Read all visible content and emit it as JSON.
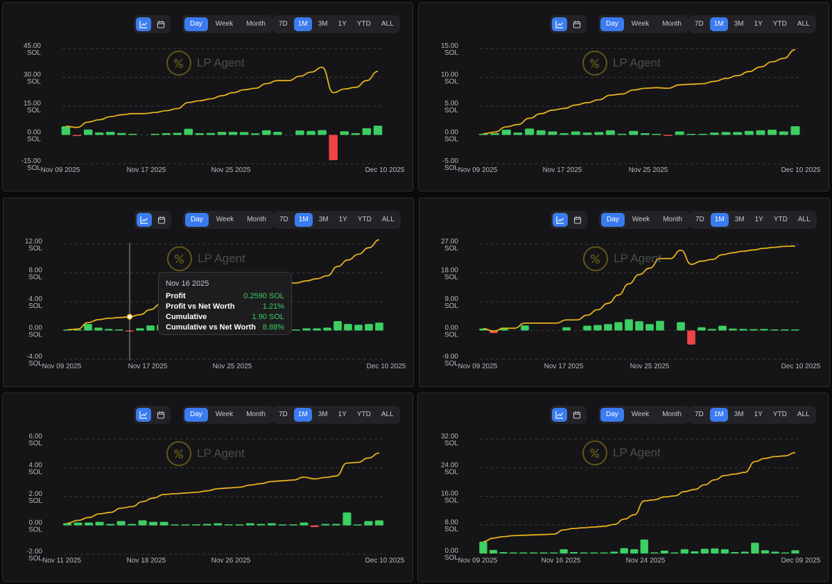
{
  "toolbar": {
    "view_icons": [
      "line-chart-icon",
      "calendar-icon"
    ],
    "group": [
      "Day",
      "Week",
      "Month"
    ],
    "group_active": "Day",
    "ranges": [
      "7D",
      "1M",
      "3M",
      "1Y",
      "YTD",
      "ALL"
    ],
    "range_active": "1M"
  },
  "watermark": "LP Agent",
  "colors": {
    "up": "#3ccf63",
    "down": "#ef4444",
    "line": "#e8b21c",
    "accent": "#3b7bf0"
  },
  "tooltip": {
    "date": "Nov 16 2025",
    "rows": [
      {
        "label": "Profit",
        "value": "0.2590 SOL"
      },
      {
        "label": "Profit vs Net Worth",
        "value": "1.21%"
      },
      {
        "label": "Cumulative",
        "value": "1.90 SOL"
      },
      {
        "label": "Cumulative vs Net Worth",
        "value": "8.88%"
      }
    ]
  },
  "chart_data": [
    {
      "type": "bar+line",
      "unit": "SOL",
      "ylim": [
        -15,
        45
      ],
      "yticks": [
        "45.00",
        "30.00",
        "15.00",
        "0.00",
        "-15.00"
      ],
      "xticks": [
        "Nov 09 2025",
        "Nov 17 2025",
        "Nov 25 2025",
        "Dec 10 2025"
      ],
      "daily_profit": [
        4.5,
        -0.6,
        2.8,
        1.2,
        1.6,
        1.0,
        0.6,
        0,
        0.6,
        0.9,
        1.1,
        3.2,
        0.9,
        1.0,
        1.6,
        1.6,
        1.5,
        0.8,
        2.4,
        1.6,
        0,
        2.3,
        2.1,
        2.5,
        -13.2,
        1.9,
        0.9,
        3.5,
        4.8
      ],
      "cumulative": [
        4.5,
        3.9,
        6.7,
        7.9,
        9.5,
        10.5,
        11.1,
        11.1,
        11.7,
        12.6,
        13.7,
        16.9,
        17.8,
        18.8,
        20.4,
        22.0,
        23.5,
        24.3,
        26.7,
        28.3,
        28.3,
        30.6,
        32.7,
        35.2,
        22.0,
        23.9,
        24.8,
        28.3,
        33.1
      ]
    },
    {
      "type": "bar+line",
      "unit": "SOL",
      "ylim": [
        -5,
        15
      ],
      "yticks": [
        "15.00",
        "10.00",
        "5.00",
        "0.00",
        "-5.00"
      ],
      "xticks": [
        "Nov 09 2025",
        "Nov 17 2025",
        "Nov 25 2025",
        "Dec 10 2025"
      ],
      "daily_profit": [
        0.2,
        0.3,
        0.9,
        0.4,
        1.1,
        0.8,
        0.6,
        0.3,
        0.6,
        0.4,
        0.5,
        0.8,
        0.2,
        0.7,
        0.3,
        0.1,
        -0.1,
        0.6,
        0.1,
        0.1,
        0.4,
        0.5,
        0.5,
        0.7,
        0.8,
        0.9,
        0.6,
        1.5
      ],
      "cumulative": [
        0.2,
        0.5,
        1.4,
        1.8,
        2.9,
        3.7,
        4.3,
        4.6,
        5.2,
        5.6,
        6.1,
        6.9,
        7.1,
        7.8,
        8.1,
        8.2,
        8.1,
        8.7,
        8.8,
        8.9,
        9.3,
        9.8,
        10.3,
        11.0,
        11.8,
        12.7,
        13.3,
        14.8
      ]
    },
    {
      "type": "bar+line",
      "unit": "SOL",
      "ylim": [
        -4,
        12
      ],
      "yticks": [
        "12.00",
        "8.00",
        "4.00",
        "0.00",
        "-4.00"
      ],
      "xticks": [
        "Nov 09 2025",
        "Nov 17 2025",
        "Nov 25 2025",
        "Dec 10 2025"
      ],
      "daily_profit": [
        0.1,
        0.1,
        0.9,
        0.4,
        0.2,
        0.1,
        -0.1,
        0.3,
        0.7,
        0.8,
        0.6,
        0.4,
        0.3,
        0.3,
        0.2,
        0.3,
        0.2,
        0.1,
        0.1,
        0.1,
        0.1,
        0.1,
        0.1,
        0.3,
        0.3,
        0.4,
        1.3,
        0.9,
        0.8,
        0.9,
        1.1
      ],
      "cumulative": [
        0.1,
        0.2,
        1.1,
        1.5,
        1.7,
        1.8,
        1.9,
        2.2,
        2.9,
        3.7,
        4.3,
        4.7,
        5.0,
        5.3,
        5.5,
        5.8,
        6.0,
        6.1,
        6.2,
        6.3,
        6.4,
        6.5,
        6.6,
        6.9,
        7.2,
        7.6,
        8.9,
        9.8,
        10.6,
        11.5,
        12.6
      ]
    },
    {
      "type": "bar+line",
      "unit": "SOL",
      "ylim": [
        -9,
        27
      ],
      "yticks": [
        "27.00",
        "18.00",
        "9.00",
        "0.00",
        "-9.00"
      ],
      "xticks": [
        "Nov 09 2025",
        "Nov 17 2025",
        "Nov 25 2025",
        "Dec 10 2025"
      ],
      "daily_profit": [
        0.6,
        -0.8,
        0.9,
        0,
        1.6,
        0,
        0,
        0,
        1.0,
        0,
        1.5,
        1.7,
        2.0,
        2.6,
        3.5,
        2.9,
        2.0,
        3.0,
        0,
        2.6,
        -4.4,
        1.0,
        0.5,
        1.5,
        0.6,
        0.5,
        0.4,
        0.5,
        0.3,
        0.3,
        0.1
      ],
      "cumulative": [
        0.6,
        -0.2,
        0.7,
        0.7,
        2.3,
        2.3,
        2.3,
        2.3,
        3.3,
        3.3,
        4.8,
        6.5,
        8.5,
        11.1,
        14.6,
        17.5,
        19.5,
        22.5,
        22.5,
        25.1,
        20.7,
        21.7,
        22.2,
        23.7,
        24.3,
        24.8,
        25.2,
        25.7,
        26.0,
        26.3,
        26.4
      ]
    },
    {
      "type": "bar+line",
      "unit": "SOL",
      "ylim": [
        -2,
        6
      ],
      "yticks": [
        "6.00",
        "4.00",
        "2.00",
        "0.00",
        "-2.00"
      ],
      "xticks": [
        "Nov 11 2025",
        "Nov 18 2025",
        "Nov 26 2025",
        "Dec 10 2025"
      ],
      "daily_profit": [
        0.15,
        0.2,
        0.2,
        0.25,
        0.1,
        0.3,
        0.1,
        0.35,
        0.25,
        0.25,
        0.05,
        0.05,
        0.05,
        0.1,
        0.15,
        0.05,
        0.05,
        0.15,
        0.1,
        0.15,
        0.05,
        0.05,
        0.2,
        -0.12,
        0.1,
        0.1,
        0.9,
        0.05,
        0.3,
        0.35
      ],
      "cumulative": [
        0.15,
        0.35,
        0.55,
        0.8,
        0.9,
        1.2,
        1.3,
        1.65,
        1.9,
        2.15,
        2.2,
        2.25,
        2.3,
        2.4,
        2.55,
        2.6,
        2.65,
        2.8,
        2.9,
        3.05,
        3.1,
        3.15,
        3.35,
        3.23,
        3.33,
        3.43,
        4.33,
        4.38,
        4.68,
        5.03
      ]
    },
    {
      "type": "bar+line",
      "unit": "SOL",
      "ylim": [
        0,
        32
      ],
      "yticks": [
        "32.00",
        "24.00",
        "16.00",
        "8.00",
        "0.00"
      ],
      "xticks": [
        "Nov 09 2025",
        "Nov 16 2025",
        "Nov 24 2025",
        "Dec 09 2025"
      ],
      "daily_profit": [
        3.3,
        1.0,
        0.4,
        0.3,
        0.1,
        0.1,
        0.1,
        0.1,
        1.2,
        0.4,
        0.2,
        0.2,
        0.2,
        0.5,
        1.5,
        1.2,
        3.9,
        0.3,
        0.8,
        0.3,
        1.2,
        0.6,
        1.3,
        1.4,
        1.2,
        0.4,
        0.5,
        3.0,
        0.9,
        0.5,
        0.2,
        0.9
      ],
      "cumulative": [
        3.3,
        4.3,
        4.7,
        5.0,
        5.1,
        5.2,
        5.3,
        5.4,
        6.6,
        7.0,
        7.2,
        7.4,
        7.6,
        8.1,
        9.6,
        10.8,
        14.7,
        15.0,
        15.8,
        16.1,
        17.3,
        17.9,
        19.2,
        20.6,
        21.8,
        22.2,
        22.7,
        25.7,
        26.6,
        27.1,
        27.3,
        28.2
      ]
    }
  ]
}
